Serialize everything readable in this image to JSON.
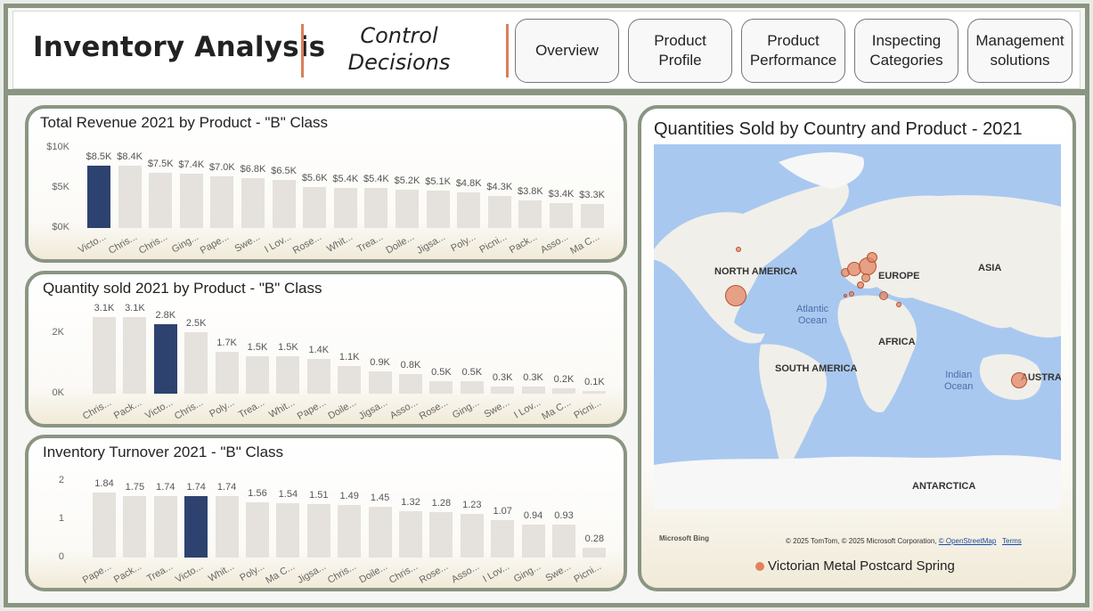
{
  "header": {
    "title": "Inventory Analysis",
    "subtitle_line1": "Control",
    "subtitle_line2": "Decisions",
    "nav": [
      {
        "line1": "Overview",
        "line2": ""
      },
      {
        "line1": "Product",
        "line2": "Profile"
      },
      {
        "line1": "Product",
        "line2": "Performance"
      },
      {
        "line1": "Inspecting",
        "line2": "Categories"
      },
      {
        "line1": "Management",
        "line2": "solutions"
      }
    ]
  },
  "highlight_color": "#2e4270",
  "bar_color": "#e5e1dc",
  "chart_data": [
    {
      "type": "bar",
      "title": "Total Revenue 2021 by Product - \"B\" Class",
      "y_ticks": [
        "$10K",
        "$5K",
        "$0K"
      ],
      "ylim": [
        0,
        10000
      ],
      "categories": [
        "Victo...",
        "Chris...",
        "Chris...",
        "Ging...",
        "Pape...",
        "Swe...",
        "I Lov...",
        "Rose...",
        "Whit...",
        "Trea...",
        "Doile...",
        "Jigsa...",
        "Poly...",
        "Picni...",
        "Pack...",
        "Asso...",
        "Ma C..."
      ],
      "values": [
        8500,
        8400,
        7500,
        7400,
        7000,
        6800,
        6500,
        5600,
        5400,
        5400,
        5200,
        5100,
        4800,
        4300,
        3800,
        3400,
        3300
      ],
      "labels": [
        "$8.5K",
        "$8.4K",
        "$7.5K",
        "$7.4K",
        "$7.0K",
        "$6.8K",
        "$6.5K",
        "$5.6K",
        "$5.4K",
        "$5.4K",
        "$5.2K",
        "$5.1K",
        "$4.8K",
        "$4.3K",
        "$3.8K",
        "$3.4K",
        "$3.3K"
      ],
      "highlight": 0
    },
    {
      "type": "bar",
      "title": "Quantity sold 2021 by Product - \"B\" Class",
      "y_ticks": [
        "2K",
        "0K"
      ],
      "ylim": [
        0,
        3100
      ],
      "categories": [
        "Chris...",
        "Pack...",
        "Victo...",
        "Chris...",
        "Poly...",
        "Trea...",
        "Whit...",
        "Pape...",
        "Doile...",
        "Jigsa...",
        "Asso...",
        "Rose...",
        "Ging...",
        "Swe...",
        "I Lov...",
        "Ma C...",
        "Picni..."
      ],
      "values": [
        3100,
        3100,
        2800,
        2500,
        1700,
        1500,
        1500,
        1400,
        1100,
        900,
        800,
        500,
        500,
        300,
        300,
        200,
        100
      ],
      "labels": [
        "3.1K",
        "3.1K",
        "2.8K",
        "2.5K",
        "1.7K",
        "1.5K",
        "1.5K",
        "1.4K",
        "1.1K",
        "0.9K",
        "0.8K",
        "0.5K",
        "0.5K",
        "0.3K",
        "0.3K",
        "0.2K",
        "0.1K"
      ],
      "highlight": 2
    },
    {
      "type": "bar",
      "title": "Inventory Turnover 2021 - \"B\" Class",
      "y_ticks": [
        "2",
        "1",
        "0"
      ],
      "ylim": [
        0,
        2
      ],
      "categories": [
        "Pape...",
        "Pack...",
        "Trea...",
        "Victo...",
        "Whit...",
        "Poly...",
        "Ma C...",
        "Jigsa...",
        "Chris...",
        "Doile...",
        "Chris...",
        "Rose...",
        "Asso...",
        "I Lov...",
        "Ging...",
        "Swe...",
        "Picni..."
      ],
      "values": [
        1.84,
        1.75,
        1.74,
        1.74,
        1.74,
        1.56,
        1.54,
        1.51,
        1.49,
        1.45,
        1.32,
        1.28,
        1.23,
        1.07,
        0.94,
        0.93,
        0.28
      ],
      "labels": [
        "1.84",
        "1.75",
        "1.74",
        "1.74",
        "1.74",
        "1.56",
        "1.54",
        "1.51",
        "1.49",
        "1.45",
        "1.32",
        "1.28",
        "1.23",
        "1.07",
        "0.94",
        "0.93",
        "0.28"
      ],
      "highlight": 3
    }
  ],
  "map": {
    "title": "Quantities Sold by Country and Product - 2021",
    "regions": [
      "NORTH AMERICA",
      "EUROPE",
      "ASIA",
      "AFRICA",
      "SOUTH AMERICA",
      "AUSTRALI",
      "ANTARCTICA"
    ],
    "oceans": [
      {
        "line1": "Atlantic",
        "line2": "Ocean"
      },
      {
        "line1": "Indian",
        "line2": "Ocean"
      }
    ],
    "provider": "Microsoft Bing",
    "copyright": "© 2025 TomTom, © 2025 Microsoft Corporation,",
    "osm_link": "© OpenStreetMap",
    "terms": "Terms",
    "legend_label": "Victorian  Metal Postcard Spring"
  }
}
